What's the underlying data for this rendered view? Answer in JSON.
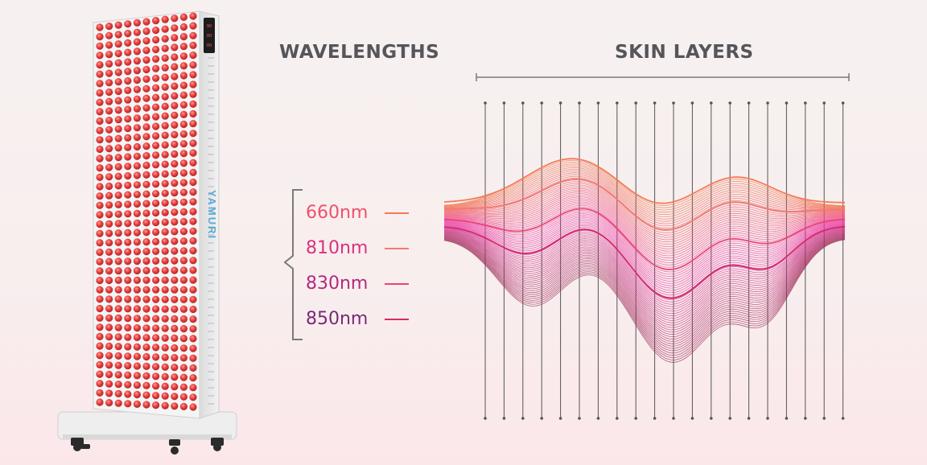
{
  "headings": {
    "wavelengths": "WAVELENGTHS",
    "skin_layers": "SKIN LAYERS"
  },
  "device": {
    "brand": "YAMURI",
    "display": [
      "90",
      "00",
      "00"
    ]
  },
  "wavelengths": [
    {
      "label": "660nm",
      "color": "#f0506e",
      "line_color": "#f47a5a"
    },
    {
      "label": "810nm",
      "color": "#d8337e",
      "line_color": "#f27a72"
    },
    {
      "label": "830nm",
      "color": "#b22a7e",
      "line_color": "#e84575"
    },
    {
      "label": "850nm",
      "color": "#7a2a78",
      "line_color": "#d42b6a"
    }
  ],
  "colors": {
    "heading": "#55555a",
    "led": "#e8403f",
    "wave_top": "#f07040",
    "wave_mid": "#ee3aa8",
    "wave_bottom": "#9a2b55"
  }
}
